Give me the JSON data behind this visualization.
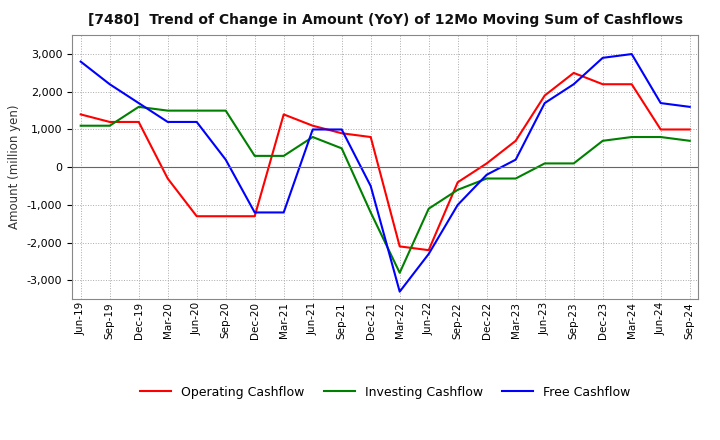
{
  "title": "[7480]  Trend of Change in Amount (YoY) of 12Mo Moving Sum of Cashflows",
  "ylabel": "Amount (million yen)",
  "background_color": "#ffffff",
  "grid_color": "#aaaaaa",
  "x_labels": [
    "Jun-19",
    "Sep-19",
    "Dec-19",
    "Mar-20",
    "Jun-20",
    "Sep-20",
    "Dec-20",
    "Mar-21",
    "Jun-21",
    "Sep-21",
    "Dec-21",
    "Mar-22",
    "Jun-22",
    "Sep-22",
    "Dec-22",
    "Mar-23",
    "Jun-23",
    "Sep-23",
    "Dec-23",
    "Mar-24",
    "Jun-24",
    "Sep-24"
  ],
  "operating_cashflow": [
    1400,
    1200,
    1200,
    -300,
    -1300,
    -1300,
    -1300,
    1400,
    1100,
    900,
    800,
    -2100,
    -2200,
    -400,
    100,
    700,
    1900,
    2500,
    2200,
    2200,
    1000,
    1000
  ],
  "investing_cashflow": [
    1100,
    1100,
    1600,
    1500,
    1500,
    1500,
    300,
    300,
    800,
    500,
    -1200,
    -2800,
    -1100,
    -600,
    -300,
    -300,
    100,
    100,
    700,
    800,
    800,
    700
  ],
  "free_cashflow": [
    2800,
    2200,
    1700,
    1200,
    1200,
    200,
    -1200,
    -1200,
    1000,
    1000,
    -500,
    -3300,
    -2300,
    -1000,
    -200,
    200,
    1700,
    2200,
    2900,
    3000,
    1700,
    1600
  ],
  "operating_color": "#ff0000",
  "investing_color": "#008000",
  "free_color": "#0000ff",
  "ylim": [
    -3500,
    3500
  ],
  "yticks": [
    -3000,
    -2000,
    -1000,
    0,
    1000,
    2000,
    3000
  ]
}
